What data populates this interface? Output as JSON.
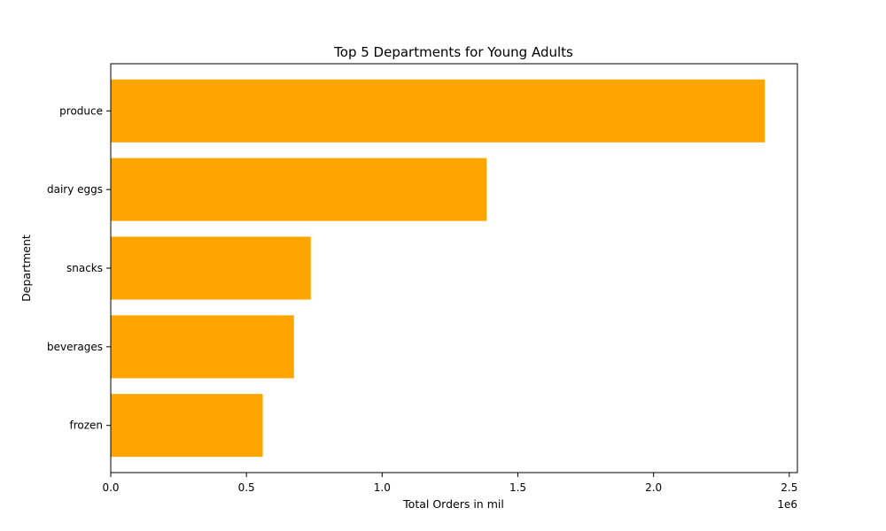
{
  "chart_data": {
    "type": "bar",
    "orientation": "horizontal",
    "title": "Top 5 Departments for Young Adults",
    "xlabel": "Total Orders in mil",
    "ylabel": "Department",
    "x_offset_text": "1e6",
    "categories": [
      "produce",
      "dairy eggs",
      "snacks",
      "beverages",
      "frozen"
    ],
    "values": [
      2410000,
      1385000,
      737000,
      675000,
      560000
    ],
    "xlim": [
      0,
      2530000
    ],
    "x_ticks": [
      0,
      500000,
      1000000,
      1500000,
      2000000,
      2500000
    ],
    "x_tick_labels": [
      "0.0",
      "0.5",
      "1.0",
      "1.5",
      "2.0",
      "2.5"
    ],
    "bar_color": "#ffa500",
    "grid": false,
    "legend": "none"
  }
}
